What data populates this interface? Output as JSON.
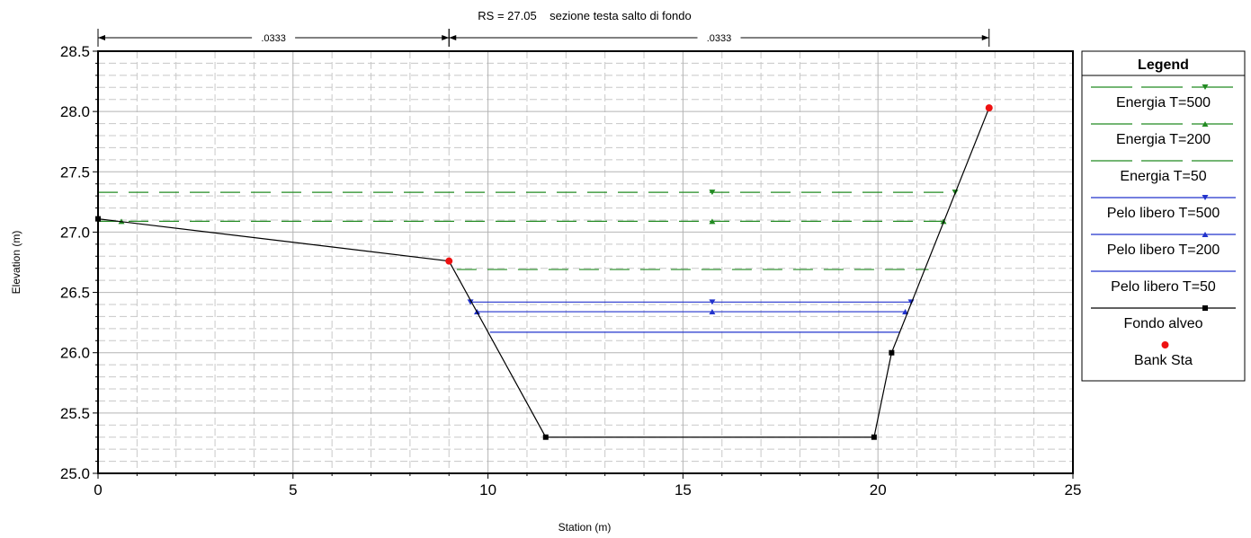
{
  "chart_data": {
    "type": "line",
    "title": "RS = 27.05    sezione testa salto di fondo",
    "xlabel": "Station (m)",
    "ylabel": "Elevation (m)",
    "xlim": [
      0,
      25
    ],
    "ylim": [
      25.0,
      28.5
    ],
    "x_ticks": [
      0,
      5,
      10,
      15,
      20,
      25
    ],
    "x_tick_labels": [
      "0",
      "5",
      "10",
      "15",
      "20",
      "25"
    ],
    "y_ticks": [
      25.0,
      25.5,
      26.0,
      26.5,
      27.0,
      27.5,
      28.0,
      28.5
    ],
    "y_tick_labels": [
      "25.0",
      "25.5",
      "26.0",
      "26.5",
      "27.0",
      "27.5",
      "28.0",
      "28.5"
    ],
    "grid": true,
    "manning_n": [
      {
        "label": ".0333",
        "from": 0,
        "to": 9.0
      },
      {
        "label": ".0333",
        "from": 9.0,
        "to": 22.85
      }
    ],
    "legend": {
      "title": "Legend",
      "placement": "right"
    },
    "series": [
      {
        "name": "Energia T=500",
        "color": "#228b22",
        "dash": "long",
        "marker": "triangle-down",
        "elevation": 27.33,
        "x": [
          0,
          21.98
        ],
        "marker_x": [
          15.75,
          21.98
        ]
      },
      {
        "name": "Energia T=200",
        "color": "#228b22",
        "dash": "long",
        "marker": "triangle-up",
        "elevation": 27.09,
        "x": [
          0,
          21.68
        ],
        "marker_x": [
          0.6,
          15.75,
          21.68
        ]
      },
      {
        "name": "Energia T=50",
        "color": "#228b22",
        "dash": "long",
        "marker": "none",
        "elevation": 26.69,
        "x": [
          9.2,
          21.3
        ],
        "marker_x": []
      },
      {
        "name": "Pelo libero T=500",
        "color": "#2233cc",
        "dash": "solid",
        "marker": "triangle-down",
        "elevation": 26.42,
        "x": [
          9.55,
          20.85
        ],
        "marker_x": [
          9.55,
          15.75,
          20.85
        ]
      },
      {
        "name": "Pelo libero T=200",
        "color": "#2233cc",
        "dash": "solid",
        "marker": "triangle-up",
        "elevation": 26.34,
        "x": [
          9.72,
          20.7
        ],
        "marker_x": [
          9.72,
          15.75,
          20.7
        ]
      },
      {
        "name": "Pelo libero T=50",
        "color": "#2233cc",
        "dash": "solid",
        "marker": "none",
        "elevation": 26.17,
        "x": [
          10.05,
          20.55
        ],
        "marker_x": []
      },
      {
        "name": "Fondo alveo",
        "color": "#000000",
        "dash": "solid",
        "marker": "square",
        "points": [
          [
            0,
            27.11
          ],
          [
            9.0,
            26.76
          ],
          [
            11.48,
            25.3
          ],
          [
            19.9,
            25.3
          ],
          [
            20.35,
            26.0
          ],
          [
            22.85,
            28.03
          ]
        ],
        "marker_points": [
          [
            0,
            27.11
          ],
          [
            11.48,
            25.3
          ],
          [
            19.9,
            25.3
          ],
          [
            20.35,
            26.0
          ]
        ]
      },
      {
        "name": "Bank Sta",
        "color": "#ee1111",
        "dash": "none",
        "marker": "circle",
        "points": [
          [
            9.0,
            26.76
          ],
          [
            22.85,
            28.03
          ]
        ]
      }
    ]
  }
}
